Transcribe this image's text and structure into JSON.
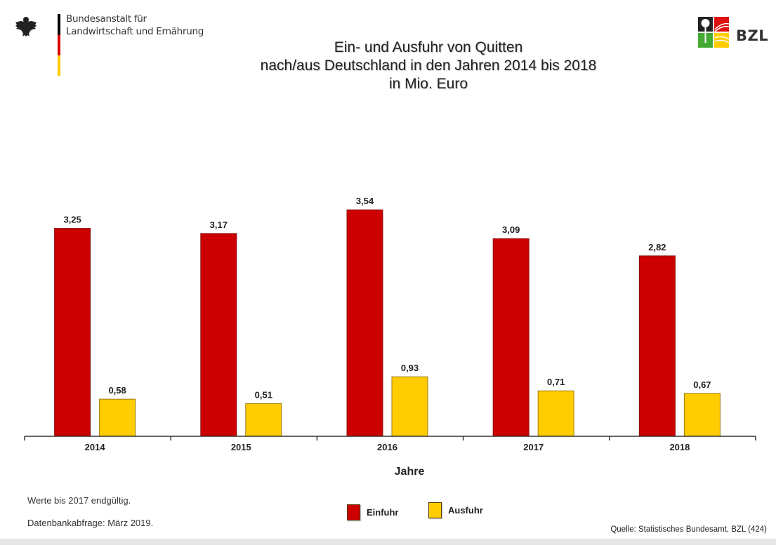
{
  "header": {
    "org_name_line1": "Bundesanstalt für",
    "org_name_line2": "Landwirtschaft und Ernährung",
    "brand_logo_text": "BZL",
    "flag_colors": [
      "#000000",
      "#dd0000",
      "#ffcc00"
    ]
  },
  "chart_data": {
    "type": "bar",
    "title": "Ein- und Ausfuhr von Quitten\nnach/aus Deutschland in den Jahren 2014 bis 2018\nin Mio. Euro",
    "title_lines": [
      "Ein- und Ausfuhr von Quitten",
      "nach/aus Deutschland in den Jahren 2014 bis 2018",
      "in Mio. Euro"
    ],
    "xlabel": "Jahre",
    "ylabel": "",
    "categories": [
      "2014",
      "2015",
      "2016",
      "2017",
      "2018"
    ],
    "series": [
      {
        "name": "Einfuhr",
        "color": "#cc0000",
        "values": [
          3.25,
          3.17,
          3.54,
          3.09,
          2.82
        ],
        "labels": [
          "3,25",
          "3,17",
          "3,54",
          "3,09",
          "2,82"
        ]
      },
      {
        "name": "Ausfuhr",
        "color": "#ffcc00",
        "values": [
          0.58,
          0.51,
          0.93,
          0.71,
          0.67
        ],
        "labels": [
          "0,58",
          "0,51",
          "0,93",
          "0,71",
          "0,67"
        ]
      }
    ],
    "ylim": [
      0,
      3.54
    ],
    "grid": false,
    "legend_position": "bottom-center"
  },
  "notes": {
    "line1": "Werte bis 2017 endgültig.",
    "line2": "Datenbankabfrage: März 2019."
  },
  "source": "Quelle: Statistisches Bundesamt, BZL (424)"
}
